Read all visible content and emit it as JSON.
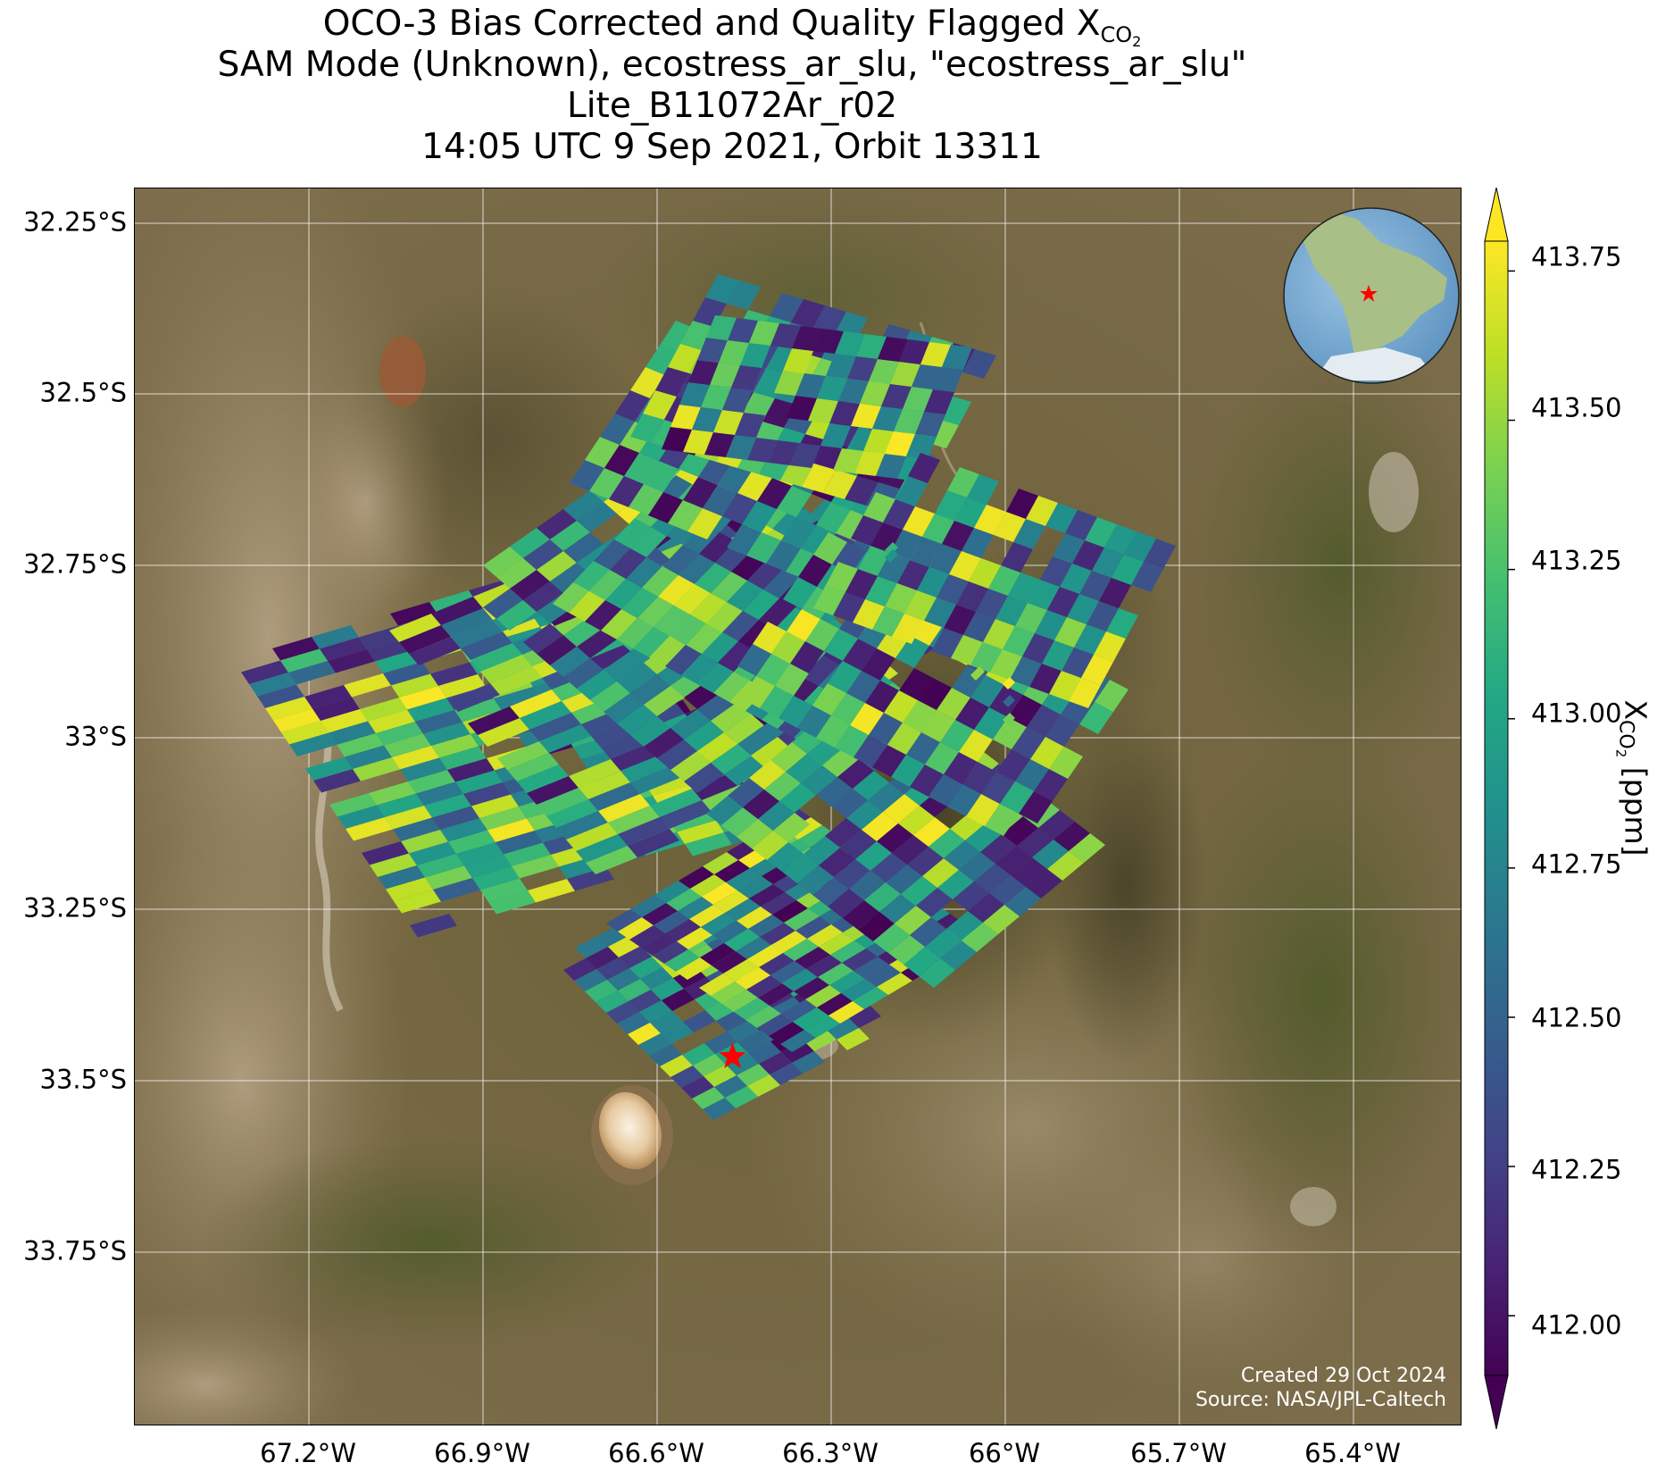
{
  "title": {
    "line1_prefix": "OCO-3 Bias Corrected and Quality Flagged X",
    "line1_sub_text": "CO",
    "line1_sub_sub": "2",
    "line2": "SAM Mode (Unknown), ecostress_ar_slu, \"ecostress_ar_slu\"",
    "line3": "Lite_B11072Ar_r02",
    "line4": "14:05 UTC 9 Sep 2021, Orbit 13311"
  },
  "map": {
    "lat_ticks": [
      "32.25°S",
      "32.5°S",
      "32.75°S",
      "33°S",
      "33.25°S",
      "33.5°S",
      "33.75°S"
    ],
    "lon_ticks": [
      "67.2°W",
      "66.9°W",
      "66.6°W",
      "66.3°W",
      "66°W",
      "65.7°W",
      "65.4°W"
    ],
    "target_marker": {
      "lon": -66.47,
      "lat": -33.465,
      "color": "#ff0000"
    },
    "credit_line1": "Created 29 Oct 2024",
    "credit_line2": "Source: NASA/JPL-Caltech"
  },
  "colorbar": {
    "colormap": "viridis",
    "min": 411.9,
    "max": 413.8,
    "extend": "both",
    "ticks": [
      "413.75",
      "413.50",
      "413.25",
      "413.00",
      "412.75",
      "412.50",
      "412.25",
      "412.00"
    ],
    "label_prefix": "X",
    "label_sub_text": "CO",
    "label_sub_sub": "2",
    "label_suffix": " [ppm]"
  },
  "inset_globe": {
    "region": "South America",
    "marker_color": "#ff0000"
  },
  "colors": {
    "terrain": "#7a6a48",
    "grid": "#ffffff",
    "marker": "#ff0000"
  }
}
